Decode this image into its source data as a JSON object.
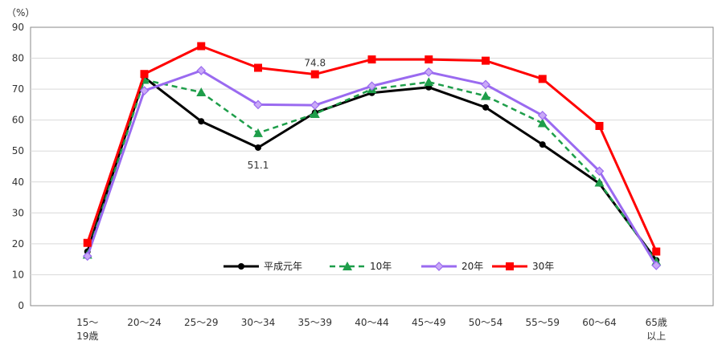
{
  "chart_data": {
    "type": "line",
    "unit_label": "（%）",
    "ylim": [
      0,
      90
    ],
    "yticks": [
      0,
      10,
      20,
      30,
      40,
      50,
      60,
      70,
      80,
      90
    ],
    "grid": true,
    "legend_position": "bottom-center",
    "categories": [
      [
        "15～",
        "19歳"
      ],
      [
        "20～24"
      ],
      [
        "25～29"
      ],
      [
        "30～34"
      ],
      [
        "35～39"
      ],
      [
        "40～44"
      ],
      [
        "45～49"
      ],
      [
        "50～54"
      ],
      [
        "55～59"
      ],
      [
        "60～64"
      ],
      [
        "65歳",
        "以上"
      ]
    ],
    "series": [
      {
        "name": "平成元年",
        "color": "#000000",
        "marker": "circle",
        "dash": false,
        "values": [
          17.5,
          73.8,
          59.6,
          51.1,
          62.4,
          68.8,
          70.6,
          64.1,
          52.1,
          39.5,
          14.7
        ]
      },
      {
        "name": "10年",
        "color": "#1e9e4a",
        "marker": "triangle",
        "dash": true,
        "values": [
          16.5,
          73.0,
          69.0,
          55.8,
          62.0,
          70.0,
          72.3,
          67.8,
          59.0,
          39.8,
          14.3
        ]
      },
      {
        "name": "20年",
        "color": "#9a6af0",
        "marker": "diamond",
        "dash": false,
        "values": [
          16.0,
          69.5,
          76.0,
          65.0,
          64.8,
          71.0,
          75.5,
          71.5,
          61.5,
          43.5,
          13.0
        ]
      },
      {
        "name": "30年",
        "color": "#ff0000",
        "marker": "square",
        "dash": false,
        "values": [
          20.3,
          74.9,
          83.9,
          76.9,
          74.8,
          79.6,
          79.6,
          79.2,
          73.3,
          58.1,
          17.5
        ]
      }
    ],
    "annotations": [
      {
        "text": "74.8",
        "category_index": 4,
        "series_index": 3
      },
      {
        "text": "51.1",
        "category_index": 3,
        "series_index": 0
      }
    ]
  }
}
